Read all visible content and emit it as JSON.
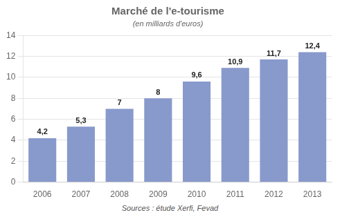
{
  "chart_data": {
    "type": "bar",
    "title": "Marché de l'e-tourisme",
    "subtitle": "(en milliards d'euros)",
    "source": "Sources : étude Xerfi, Fevad",
    "categories": [
      "2006",
      "2007",
      "2008",
      "2009",
      "2010",
      "2011",
      "2012",
      "2013"
    ],
    "values": [
      4.2,
      5.3,
      7,
      8,
      9.6,
      10.9,
      11.7,
      12.4
    ],
    "value_labels": [
      "4,2",
      "5,3",
      "7",
      "8",
      "9,6",
      "10,9",
      "11,7",
      "12,4"
    ],
    "data_labels": true,
    "color": "#8899cc",
    "ylim": [
      0,
      14
    ],
    "yticks": [
      0,
      2,
      4,
      6,
      8,
      10,
      12,
      14
    ],
    "grid": true
  }
}
